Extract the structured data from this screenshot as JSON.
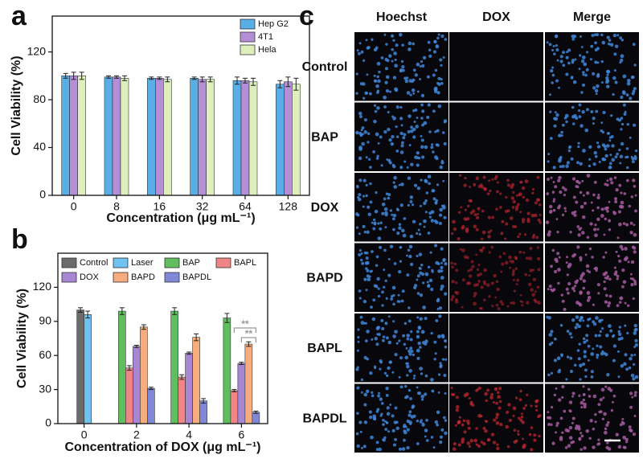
{
  "chart_data": [
    {
      "type": "bar",
      "panel_label": "a",
      "ylabel": "Cell Viability (%)",
      "xlabel": "Concentration (μg mL⁻¹)",
      "categories": [
        "0",
        "8",
        "16",
        "32",
        "64",
        "128"
      ],
      "series": [
        {
          "name": "Hep G2",
          "color": "#5aaee8",
          "values": [
            100,
            99,
            98,
            98,
            96,
            93
          ],
          "errors": [
            2,
            1,
            1,
            1,
            3,
            3
          ]
        },
        {
          "name": "4T1",
          "color": "#b48fd8",
          "values": [
            100,
            99,
            98,
            97,
            96,
            95
          ],
          "errors": [
            3,
            1,
            1,
            2,
            2,
            4
          ]
        },
        {
          "name": "Hela",
          "color": "#dcefbc",
          "values": [
            100,
            98,
            97,
            97,
            95,
            93
          ],
          "errors": [
            3,
            2,
            2,
            2,
            3,
            5
          ]
        }
      ],
      "ylim": [
        0,
        150
      ],
      "yticks": [
        0,
        40,
        80,
        120
      ],
      "legend": "upper right"
    },
    {
      "type": "bar",
      "panel_label": "b",
      "ylabel": "Cell Viability (%)",
      "xlabel": "Concentration of DOX (μg mL⁻¹)",
      "categories": [
        "0",
        "2",
        "4",
        "6"
      ],
      "series": [
        {
          "name": "Control",
          "color": "#6b6b6b",
          "values": [
            100,
            null,
            null,
            null
          ],
          "errors": [
            2,
            null,
            null,
            null
          ]
        },
        {
          "name": "Laser",
          "color": "#6fc2f2",
          "values": [
            96,
            null,
            null,
            null
          ],
          "errors": [
            3,
            null,
            null,
            null
          ]
        },
        {
          "name": "BAP",
          "color": "#5fbf5f",
          "values": [
            null,
            99,
            99,
            93
          ],
          "errors": [
            null,
            3,
            3,
            4
          ]
        },
        {
          "name": "BAPL",
          "color": "#f08585",
          "values": [
            null,
            49,
            41,
            29
          ],
          "errors": [
            null,
            2,
            2,
            1
          ]
        },
        {
          "name": "DOX",
          "color": "#a986d4",
          "values": [
            null,
            68,
            62,
            53
          ],
          "errors": [
            null,
            1,
            1,
            1
          ]
        },
        {
          "name": "BAPD",
          "color": "#f6ac7c",
          "values": [
            null,
            85,
            76,
            70
          ],
          "errors": [
            null,
            2,
            3,
            2
          ]
        },
        {
          "name": "BAPDL",
          "color": "#7f89d8",
          "values": [
            null,
            31,
            20,
            10
          ],
          "errors": [
            null,
            1,
            2,
            1
          ]
        }
      ],
      "ylim": [
        0,
        150
      ],
      "yticks": [
        0,
        30,
        60,
        90,
        120
      ],
      "legend": "upper center",
      "legend_columns": 4,
      "annotations": [
        "**",
        "**"
      ]
    }
  ],
  "panel_c": {
    "label": "c",
    "columns": [
      "Hoechst",
      "DOX",
      "Merge"
    ],
    "rows": [
      "Control",
      "BAP",
      "DOX",
      "BAPD",
      "BAPL",
      "BAPDL"
    ]
  }
}
